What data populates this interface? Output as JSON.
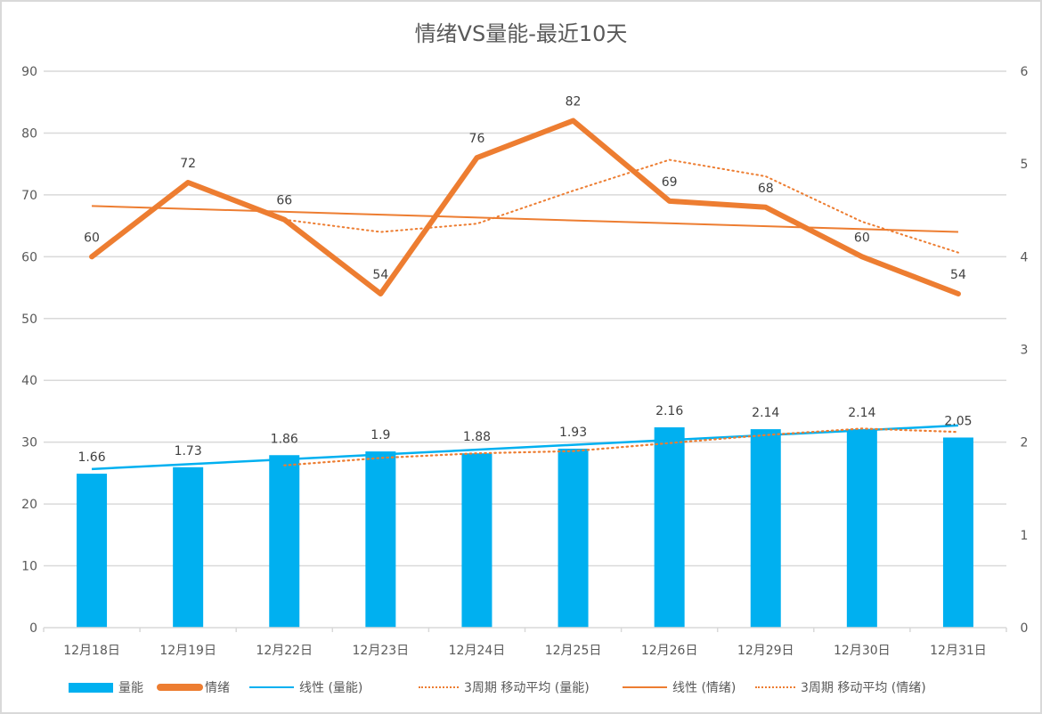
{
  "chart_data": {
    "type": "bar+line",
    "title": "情绪VS量能-最近10天",
    "categories": [
      "12月18日",
      "12月19日",
      "12月22日",
      "12月23日",
      "12月24日",
      "12月25日",
      "12月26日",
      "12月29日",
      "12月30日",
      "12月31日"
    ],
    "left_axis": {
      "ylim": [
        0,
        90
      ],
      "ticks": [
        "0",
        "10",
        "20",
        "30",
        "40",
        "50",
        "60",
        "70",
        "80",
        "90"
      ]
    },
    "right_axis": {
      "ylim": [
        0,
        6
      ],
      "ticks": [
        "0",
        "1",
        "2",
        "3",
        "4",
        "5",
        "6"
      ]
    },
    "grid": true,
    "series": [
      {
        "name": "量能",
        "type": "bar",
        "axis": "right",
        "color": "#00B0F0",
        "values": [
          1.66,
          1.73,
          1.86,
          1.9,
          1.88,
          1.93,
          2.16,
          2.14,
          2.14,
          2.05
        ],
        "labels": [
          "1.66",
          "1.73",
          "1.86",
          "1.9",
          "1.88",
          "1.93",
          "2.16",
          "2.14",
          "2.14",
          "2.05"
        ]
      },
      {
        "name": "情绪",
        "type": "line",
        "axis": "left",
        "color": "#ED7D31",
        "values": [
          60,
          72,
          66,
          54,
          76,
          82,
          69,
          68,
          60,
          54
        ],
        "labels": [
          "60",
          "72",
          "66",
          "54",
          "76",
          "82",
          "69",
          "68",
          "60",
          "54"
        ]
      },
      {
        "name": "线性 (量能)",
        "type": "trendline-linear",
        "of": "量能",
        "axis": "right",
        "color": "#00B0F0"
      },
      {
        "name": "3周期 移动平均 (量能)",
        "type": "trendline-moving-average",
        "period": 3,
        "of": "量能",
        "axis": "right",
        "color": "#ED7D31"
      },
      {
        "name": "线性 (情绪)",
        "type": "trendline-linear",
        "of": "情绪",
        "axis": "left",
        "color": "#ED7D31"
      },
      {
        "name": "3周期 移动平均 (情绪)",
        "type": "trendline-moving-average",
        "period": 3,
        "of": "情绪",
        "axis": "left",
        "color": "#ED7D31"
      }
    ],
    "legend": "bottom"
  }
}
